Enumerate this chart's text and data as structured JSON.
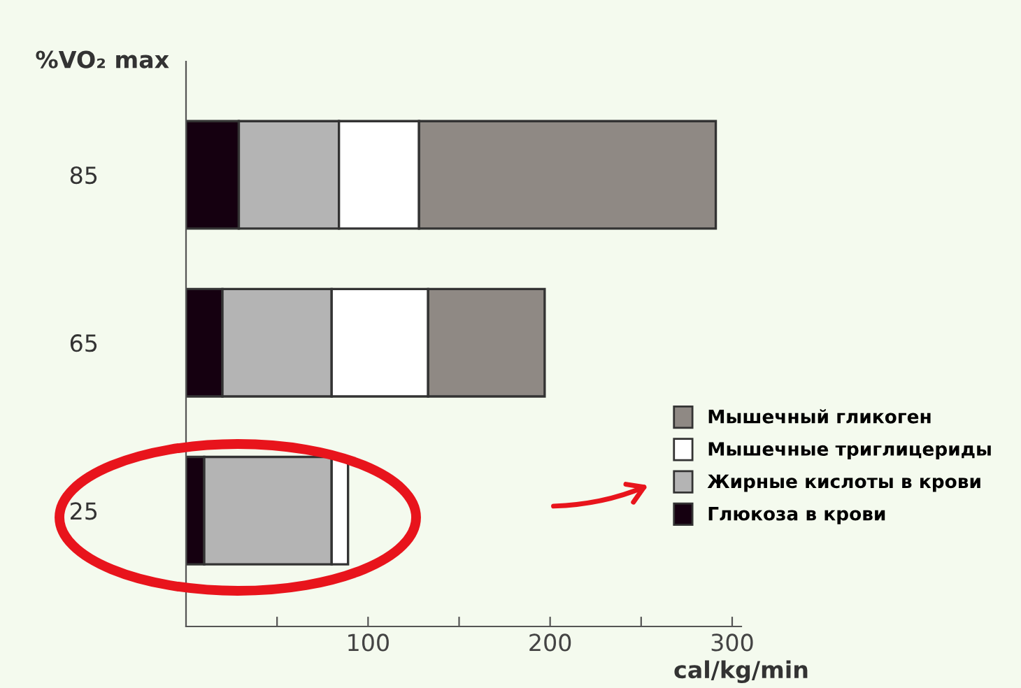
{
  "chart_data": {
    "type": "bar",
    "orientation": "horizontal",
    "stacked": true,
    "categories": [
      "85",
      "65",
      "25"
    ],
    "series": [
      {
        "name": "Глюкоза в крови",
        "color": "#150010",
        "values": [
          29,
          20,
          10
        ]
      },
      {
        "name": "Жирные кислоты в крови",
        "color": "#b4b4b4",
        "values": [
          55,
          60,
          70
        ]
      },
      {
        "name": "Мышечные триглицериды",
        "color": "#ffffff",
        "values": [
          44,
          53,
          9
        ]
      },
      {
        "name": "Мышечный гликоген",
        "color": "#8f8984",
        "values": [
          163,
          64,
          0
        ]
      }
    ],
    "xlabel": "cal/kg/min",
    "ylabel": "%VO₂ max",
    "xlim": [
      0,
      305
    ],
    "xticks": [
      {
        "value": 50,
        "label": null
      },
      100,
      {
        "value": 150,
        "label": null
      },
      200,
      {
        "value": 250,
        "label": null
      },
      300
    ],
    "legend": "right",
    "grid": false
  }
}
